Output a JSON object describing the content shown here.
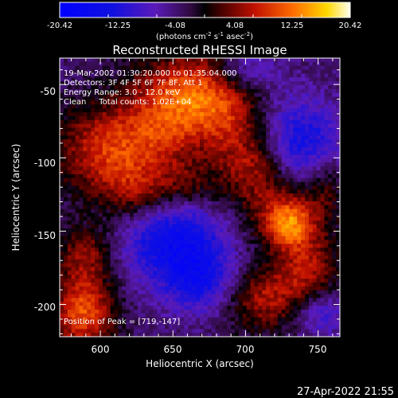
{
  "chart_data": {
    "type": "heatmap",
    "title": "Reconstructed RHESSI Image",
    "xlabel": "Heliocentric X (arcsec)",
    "ylabel": "Heliocentric Y (arcsec)",
    "xlim": [
      572,
      765
    ],
    "ylim": [
      -222,
      -32
    ],
    "x_ticks": [
      600,
      650,
      700,
      750
    ],
    "y_ticks": [
      -50,
      -100,
      -150,
      -200
    ],
    "annotations": [
      "19-Mar-2002 01:30:20.000 to 01:35:04.000",
      "Detectors: 3F 4F 5F 6F 7F 8F, Att 1",
      "Energy Range: 3.0 - 12.0 keV",
      "Clean     Total counts: 1.02E+04",
      "Position of Peak = [719,-147]"
    ],
    "colorbar": {
      "range": [
        -20.42,
        20.42
      ],
      "tick_labels": [
        "-20.42",
        "-12.25",
        "-4.08",
        "4.08",
        "12.25",
        "20.42"
      ],
      "unit_prefix": "(photons cm",
      "unit_exp1": "-2",
      "unit_mid": " s",
      "unit_exp2": "-1",
      "unit_mid2": " asec",
      "unit_exp3": "-2",
      "unit_suffix": ")"
    },
    "peak": {
      "x": 719,
      "y": -147
    },
    "blobs": [
      {
        "x": 730,
        "y": -146,
        "sx": 12,
        "sy": 12,
        "a": 13
      },
      {
        "x": 720,
        "y": -130,
        "sx": 22,
        "sy": 18,
        "a": 7
      },
      {
        "x": 605,
        "y": -95,
        "sx": 24,
        "sy": 22,
        "a": 12
      },
      {
        "x": 645,
        "y": -70,
        "sx": 20,
        "sy": 26,
        "a": 11
      },
      {
        "x": 670,
        "y": -55,
        "sx": 18,
        "sy": 20,
        "a": 9
      },
      {
        "x": 690,
        "y": -75,
        "sx": 16,
        "sy": 22,
        "a": 8
      },
      {
        "x": 588,
        "y": -205,
        "sx": 15,
        "sy": 18,
        "a": 14
      },
      {
        "x": 715,
        "y": -195,
        "sx": 22,
        "sy": 16,
        "a": 10
      },
      {
        "x": 745,
        "y": -175,
        "sx": 14,
        "sy": 18,
        "a": 8
      },
      {
        "x": 590,
        "y": -165,
        "sx": 14,
        "sy": 14,
        "a": 8
      },
      {
        "x": 660,
        "y": -120,
        "sx": 16,
        "sy": 12,
        "a": 6
      },
      {
        "x": 625,
        "y": -125,
        "sx": 16,
        "sy": 14,
        "a": 7
      },
      {
        "x": 705,
        "y": -105,
        "sx": 14,
        "sy": 14,
        "a": 6
      },
      {
        "x": 755,
        "y": -120,
        "sx": 10,
        "sy": 16,
        "a": 5
      },
      {
        "x": 650,
        "y": -155,
        "sx": 26,
        "sy": 22,
        "a": -12
      },
      {
        "x": 670,
        "y": -185,
        "sx": 18,
        "sy": 16,
        "a": -9
      },
      {
        "x": 740,
        "y": -90,
        "sx": 18,
        "sy": 22,
        "a": -10
      },
      {
        "x": 750,
        "y": -205,
        "sx": 14,
        "sy": 12,
        "a": -8
      },
      {
        "x": 700,
        "y": -40,
        "sx": 16,
        "sy": 10,
        "a": -6
      }
    ]
  },
  "footer": {
    "datetime": "27-Apr-2022 21:55"
  }
}
